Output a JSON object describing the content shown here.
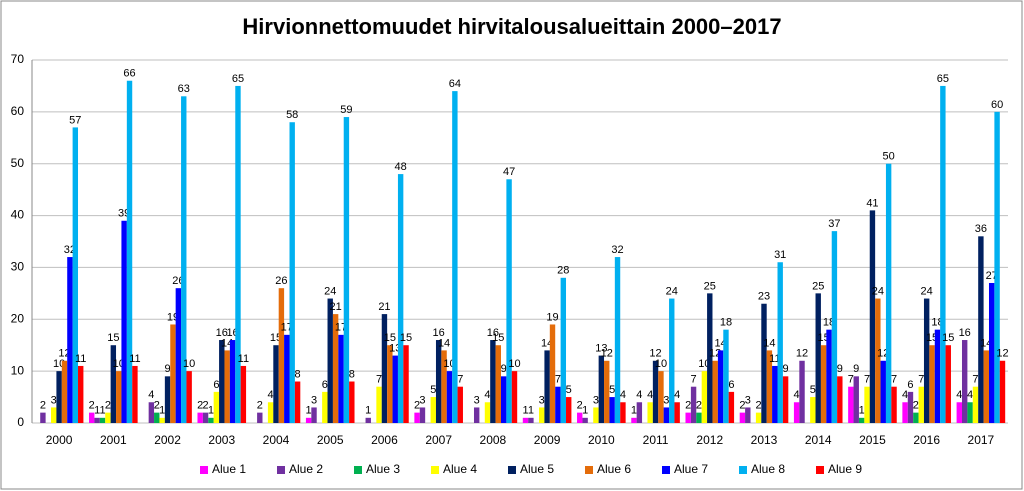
{
  "chart_data": {
    "type": "bar",
    "title": "Hirvionnettomuudet hirvitalousalueittain 2000–2017",
    "categories": [
      "2000",
      "2001",
      "2002",
      "2003",
      "2004",
      "2005",
      "2006",
      "2007",
      "2008",
      "2009",
      "2010",
      "2011",
      "2012",
      "2013",
      "2014",
      "2015",
      "2016",
      "2017"
    ],
    "series": [
      {
        "name": "Alue 1",
        "color": "#ff00ff",
        "values": [
          null,
          2,
          null,
          2,
          null,
          1,
          null,
          2,
          null,
          1,
          2,
          1,
          2,
          2,
          4,
          7,
          4,
          4
        ]
      },
      {
        "name": "Alue 2",
        "color": "#7030a0",
        "values": [
          2,
          1,
          4,
          2,
          2,
          3,
          1,
          3,
          3,
          1,
          1,
          4,
          7,
          3,
          12,
          9,
          6,
          16
        ]
      },
      {
        "name": "Alue 3",
        "color": "#00b050",
        "values": [
          null,
          1,
          2,
          1,
          null,
          null,
          null,
          null,
          null,
          null,
          null,
          null,
          2,
          null,
          null,
          1,
          2,
          4
        ]
      },
      {
        "name": "Alue 4",
        "color": "#ffff00",
        "values": [
          3,
          2,
          1,
          6,
          4,
          6,
          7,
          5,
          4,
          3,
          3,
          4,
          10,
          2,
          5,
          7,
          7,
          7
        ]
      },
      {
        "name": "Alue 5",
        "color": "#002060",
        "values": [
          10,
          15,
          9,
          16,
          15,
          24,
          21,
          16,
          16,
          14,
          13,
          12,
          25,
          23,
          25,
          41,
          24,
          36
        ]
      },
      {
        "name": "Alue 6",
        "color": "#e46c0a",
        "values": [
          12,
          10,
          19,
          14,
          26,
          21,
          15,
          14,
          15,
          19,
          12,
          10,
          12,
          14,
          15,
          24,
          15,
          14
        ]
      },
      {
        "name": "Alue 7",
        "color": "#0000ff",
        "values": [
          32,
          39,
          26,
          16,
          17,
          17,
          13,
          10,
          9,
          7,
          5,
          3,
          14,
          11,
          18,
          12,
          18,
          27
        ]
      },
      {
        "name": "Alue 8",
        "color": "#00b0f0",
        "values": [
          57,
          66,
          63,
          65,
          58,
          59,
          48,
          64,
          47,
          28,
          32,
          24,
          18,
          31,
          37,
          50,
          65,
          60
        ]
      },
      {
        "name": "Alue 9",
        "color": "#ff0000",
        "values": [
          11,
          11,
          10,
          11,
          8,
          8,
          15,
          7,
          10,
          5,
          4,
          4,
          6,
          9,
          9,
          7,
          15,
          12
        ]
      }
    ],
    "ylim": [
      0,
      70
    ],
    "yticks": [
      0,
      10,
      20,
      30,
      40,
      50,
      60,
      70
    ],
    "grid": true,
    "legend": "bottom"
  }
}
